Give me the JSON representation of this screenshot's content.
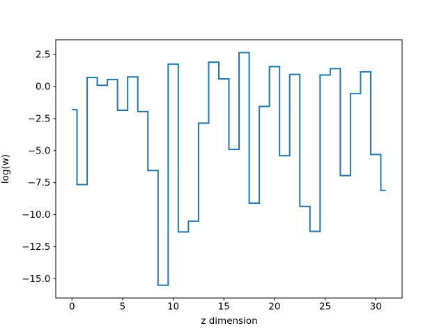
{
  "chart_data": {
    "type": "line",
    "subtype": "step",
    "step_where": "mid",
    "title": "",
    "xlabel": "z dimension",
    "ylabel": "log(w)",
    "x": [
      0,
      1,
      2,
      3,
      4,
      5,
      6,
      7,
      8,
      9,
      10,
      11,
      12,
      13,
      14,
      15,
      16,
      17,
      18,
      19,
      20,
      21,
      22,
      23,
      24,
      25,
      26,
      27,
      28,
      29,
      30,
      31
    ],
    "series": [
      {
        "name": "log(w)",
        "values": [
          -1.8,
          -7.65,
          0.7,
          0.1,
          0.55,
          -1.85,
          0.75,
          -1.95,
          -6.55,
          -15.5,
          1.75,
          -11.35,
          -10.5,
          -2.85,
          1.9,
          0.6,
          -4.9,
          2.65,
          -9.1,
          -1.55,
          1.55,
          -5.4,
          0.95,
          -9.35,
          -11.3,
          0.9,
          1.4,
          -6.95,
          -0.55,
          1.15,
          -5.3,
          -8.1
        ]
      }
    ],
    "xticks": [
      0,
      5,
      10,
      15,
      20,
      25,
      30
    ],
    "yticks": [
      2.5,
      0.0,
      -2.5,
      -5.0,
      -7.5,
      -10.0,
      -12.5,
      -15.0
    ],
    "xlim": [
      -1.6,
      32.6
    ],
    "ylim": [
      -16.5,
      3.65
    ],
    "grid": false,
    "legend": "none",
    "line_color": "#1f77b4",
    "spine_color": "#000000",
    "background_color": "#ffffff"
  }
}
